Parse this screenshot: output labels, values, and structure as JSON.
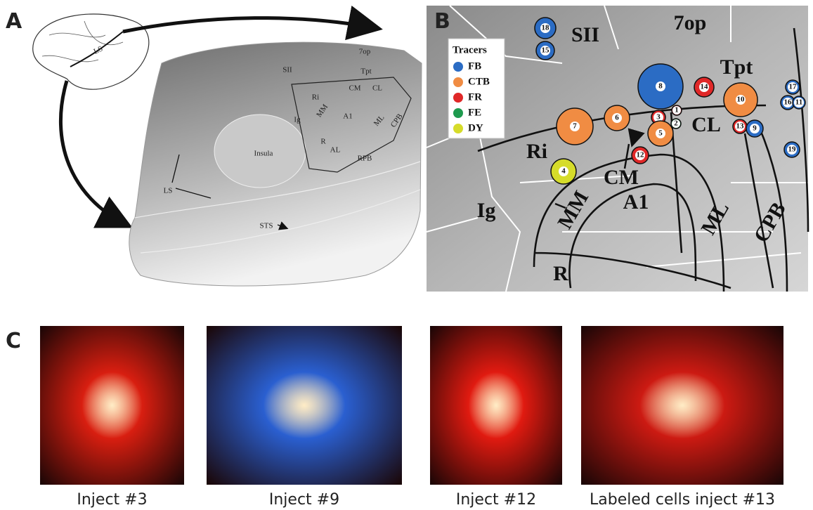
{
  "panel_a": {
    "letter": "A",
    "monkey_label": "LS",
    "areas": [
      "7op",
      "SII",
      "Tpt",
      "Ri",
      "CM",
      "CL",
      "MM",
      "A1",
      "Ig",
      "ML",
      "CPB",
      "Insula",
      "R",
      "AL",
      "RPB",
      "LS",
      "STS"
    ]
  },
  "panel_b": {
    "letter": "B",
    "legend": {
      "title": "Tracers",
      "items": [
        {
          "name": "FB",
          "color": "#2b6cc4"
        },
        {
          "name": "CTB",
          "color": "#f08c43"
        },
        {
          "name": "FR",
          "color": "#e02828"
        },
        {
          "name": "FE",
          "color": "#1e9a4e"
        },
        {
          "name": "DY",
          "color": "#d6dc2a"
        }
      ]
    },
    "areas": [
      "SII",
      "7op",
      "Tpt",
      "CL",
      "Ri",
      "CM",
      "A1",
      "MM",
      "Ig",
      "ML",
      "CPB",
      "R"
    ],
    "injections": [
      {
        "label": "18",
        "color": "#2b6cc4"
      },
      {
        "label": "15",
        "color": "#2b6cc4"
      },
      {
        "label": "8",
        "color": "#2b6cc4"
      },
      {
        "label": "14",
        "color": "#e02828"
      },
      {
        "label": "10",
        "color": "#f08c43"
      },
      {
        "label": "17",
        "color": "#2b6cc4"
      },
      {
        "label": "16",
        "color": "#2b6cc4"
      },
      {
        "label": "11",
        "color": "#2b6cc4"
      },
      {
        "label": "6",
        "color": "#f08c43"
      },
      {
        "label": "3",
        "color": "#e02828"
      },
      {
        "label": "1",
        "color": "#e02828"
      },
      {
        "label": "2",
        "color": "#1e9a4e"
      },
      {
        "label": "5",
        "color": "#f08c43"
      },
      {
        "label": "7",
        "color": "#f08c43"
      },
      {
        "label": "13",
        "color": "#e02828"
      },
      {
        "label": "9",
        "color": "#2b6cc4"
      },
      {
        "label": "19",
        "color": "#2b6cc4"
      },
      {
        "label": "12",
        "color": "#e02828"
      },
      {
        "label": "4",
        "color": "#d6dc2a"
      }
    ]
  },
  "panel_c": {
    "letter": "C",
    "images": [
      {
        "caption": "Inject #3",
        "color": "#d81e10"
      },
      {
        "caption": "Inject #9",
        "color": "#2a5fd0"
      },
      {
        "caption": "Inject #12",
        "color": "#e01a10"
      },
      {
        "caption": "Labeled cells inject #13",
        "color": "#cc1a12"
      }
    ]
  }
}
